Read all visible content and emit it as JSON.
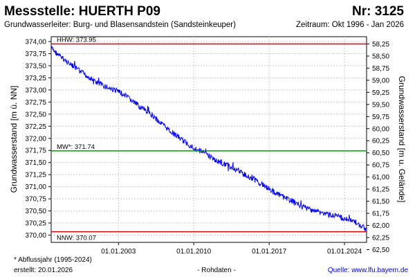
{
  "header": {
    "title": "Messstelle: HUERTH P09",
    "number": "Nr: 3125",
    "aquifer": "Grundwasserleiter:  Burg- und Blasensandstein (Sandsteinkeuper)",
    "period": "Zeitraum: Okt 1996 - Jan 2026"
  },
  "footer": {
    "note": "* Abflussjahr (1995-2024)",
    "created": "erstellt:  20.01.2026",
    "status": "- Rohdaten -",
    "source": "Quelle: www.lfu.bayern.de"
  },
  "colors": {
    "series": "#0000ff",
    "hhw": "#e00000",
    "nnw": "#e00000",
    "mw": "#00a000",
    "grid": "#c8c8c8",
    "link": "#0000cc"
  },
  "chart_data": {
    "type": "line",
    "ylabel": "Grundwasserstand [m ü. NN]",
    "ylabel_right": "Grundwasserstand [m u. Gelände]",
    "xlim": [
      "1996-10-01",
      "2026-01-20"
    ],
    "ylim": [
      369.85,
      374.1
    ],
    "y_ticks": [
      "374,00",
      "373,75",
      "373,50",
      "373,25",
      "373,00",
      "372,75",
      "372,50",
      "372,25",
      "372,00",
      "371,75",
      "371,50",
      "371,25",
      "371,00",
      "370,75",
      "370,50",
      "370,25",
      "370,00"
    ],
    "y_tick_values": [
      374.0,
      373.75,
      373.5,
      373.25,
      373.0,
      372.75,
      372.5,
      372.25,
      372.0,
      371.75,
      371.5,
      371.25,
      371.0,
      370.75,
      370.5,
      370.25,
      370.0
    ],
    "y_right_ticks": [
      "58,25",
      "58,50",
      "58,75",
      "59,00",
      "59,25",
      "59,50",
      "59,75",
      "60,00",
      "60,25",
      "60,50",
      "60,75",
      "61,00",
      "61,25",
      "61,50",
      "61,75",
      "62,00",
      "62,25",
      "62,50"
    ],
    "y_right_tick_values": [
      373.95,
      373.7,
      373.45,
      373.2,
      372.95,
      372.7,
      372.45,
      372.2,
      371.95,
      371.7,
      371.45,
      371.2,
      370.95,
      370.7,
      370.45,
      370.2,
      369.95,
      369.7
    ],
    "x_ticks": [
      "01.01.2003",
      "01.01.2010",
      "01.01.2017",
      "01.01.2024"
    ],
    "x_tick_values": [
      "2003-01-01",
      "2010-01-01",
      "2017-01-01",
      "2024-01-01"
    ],
    "grid": true,
    "reference_lines": [
      {
        "label": "HHW: 373.95",
        "value": 373.95,
        "color": "#e00000"
      },
      {
        "label": "MW*: 371.74",
        "value": 371.74,
        "color": "#00a000"
      },
      {
        "label": "NNW: 370.07",
        "value": 370.07,
        "color": "#e00000"
      }
    ],
    "series": [
      {
        "x": [
          "1996-10-01",
          "1997-06-01",
          "1998-01-01",
          "1999-01-01",
          "2000-01-01",
          "2001-01-01",
          "2002-01-01",
          "2003-01-01",
          "2004-01-01",
          "2005-01-01",
          "2006-01-01",
          "2007-01-01",
          "2008-01-01",
          "2009-01-01",
          "2010-01-01",
          "2011-01-01",
          "2012-01-01",
          "2013-01-01",
          "2014-01-01",
          "2015-01-01",
          "2016-01-01",
          "2017-01-01",
          "2018-01-01",
          "2019-01-01",
          "2020-01-01",
          "2021-01-01",
          "2022-01-01",
          "2023-01-01",
          "2024-01-01",
          "2025-01-01",
          "2025-06-01",
          "2026-01-20"
        ],
        "values": [
          373.87,
          373.72,
          373.62,
          373.45,
          373.3,
          373.15,
          373.05,
          372.97,
          372.82,
          372.65,
          372.5,
          372.3,
          372.12,
          371.95,
          371.8,
          371.7,
          371.55,
          371.45,
          371.35,
          371.22,
          371.1,
          370.95,
          370.82,
          370.72,
          370.6,
          370.52,
          370.45,
          370.4,
          370.35,
          370.28,
          370.2,
          370.12
        ]
      }
    ]
  }
}
